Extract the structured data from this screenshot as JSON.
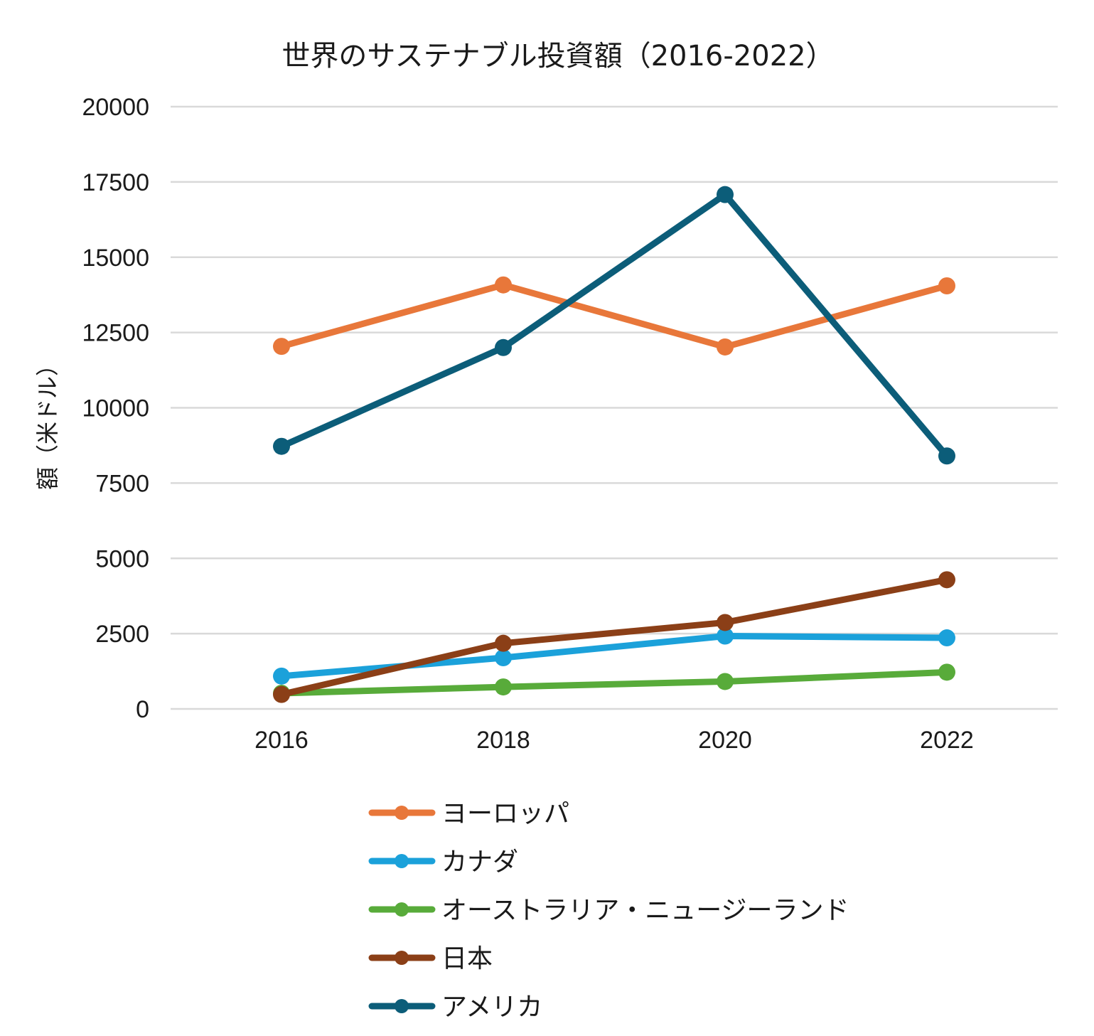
{
  "chart_data": {
    "type": "line",
    "title": "世界のサステナブル投資額（2016-2022）",
    "xlabel": "",
    "ylabel": "額（米ドル）",
    "x": [
      2016,
      2018,
      2020,
      2022
    ],
    "x_tick_labels": [
      "2016",
      "2018",
      "2020",
      "2022"
    ],
    "ylim": [
      0,
      20000
    ],
    "y_ticks": [
      0,
      2500,
      5000,
      7500,
      10000,
      12500,
      15000,
      17500,
      20000
    ],
    "grid": true,
    "legend_position": "bottom",
    "series": [
      {
        "name": "ヨーロッパ",
        "color": "#E8773A",
        "values": [
          12040,
          14080,
          12020,
          14050
        ]
      },
      {
        "name": "カナダ",
        "color": "#1BA1DA",
        "values": [
          1090,
          1700,
          2420,
          2360
        ]
      },
      {
        "name": "オーストラリア・ニュージーランド",
        "color": "#58AB3A",
        "values": [
          520,
          730,
          910,
          1220
        ]
      },
      {
        "name": "日本",
        "color": "#8B3F17",
        "values": [
          480,
          2180,
          2870,
          4290
        ]
      },
      {
        "name": "アメリカ",
        "color": "#0C5D79",
        "values": [
          8720,
          12000,
          17080,
          8400
        ]
      }
    ]
  }
}
